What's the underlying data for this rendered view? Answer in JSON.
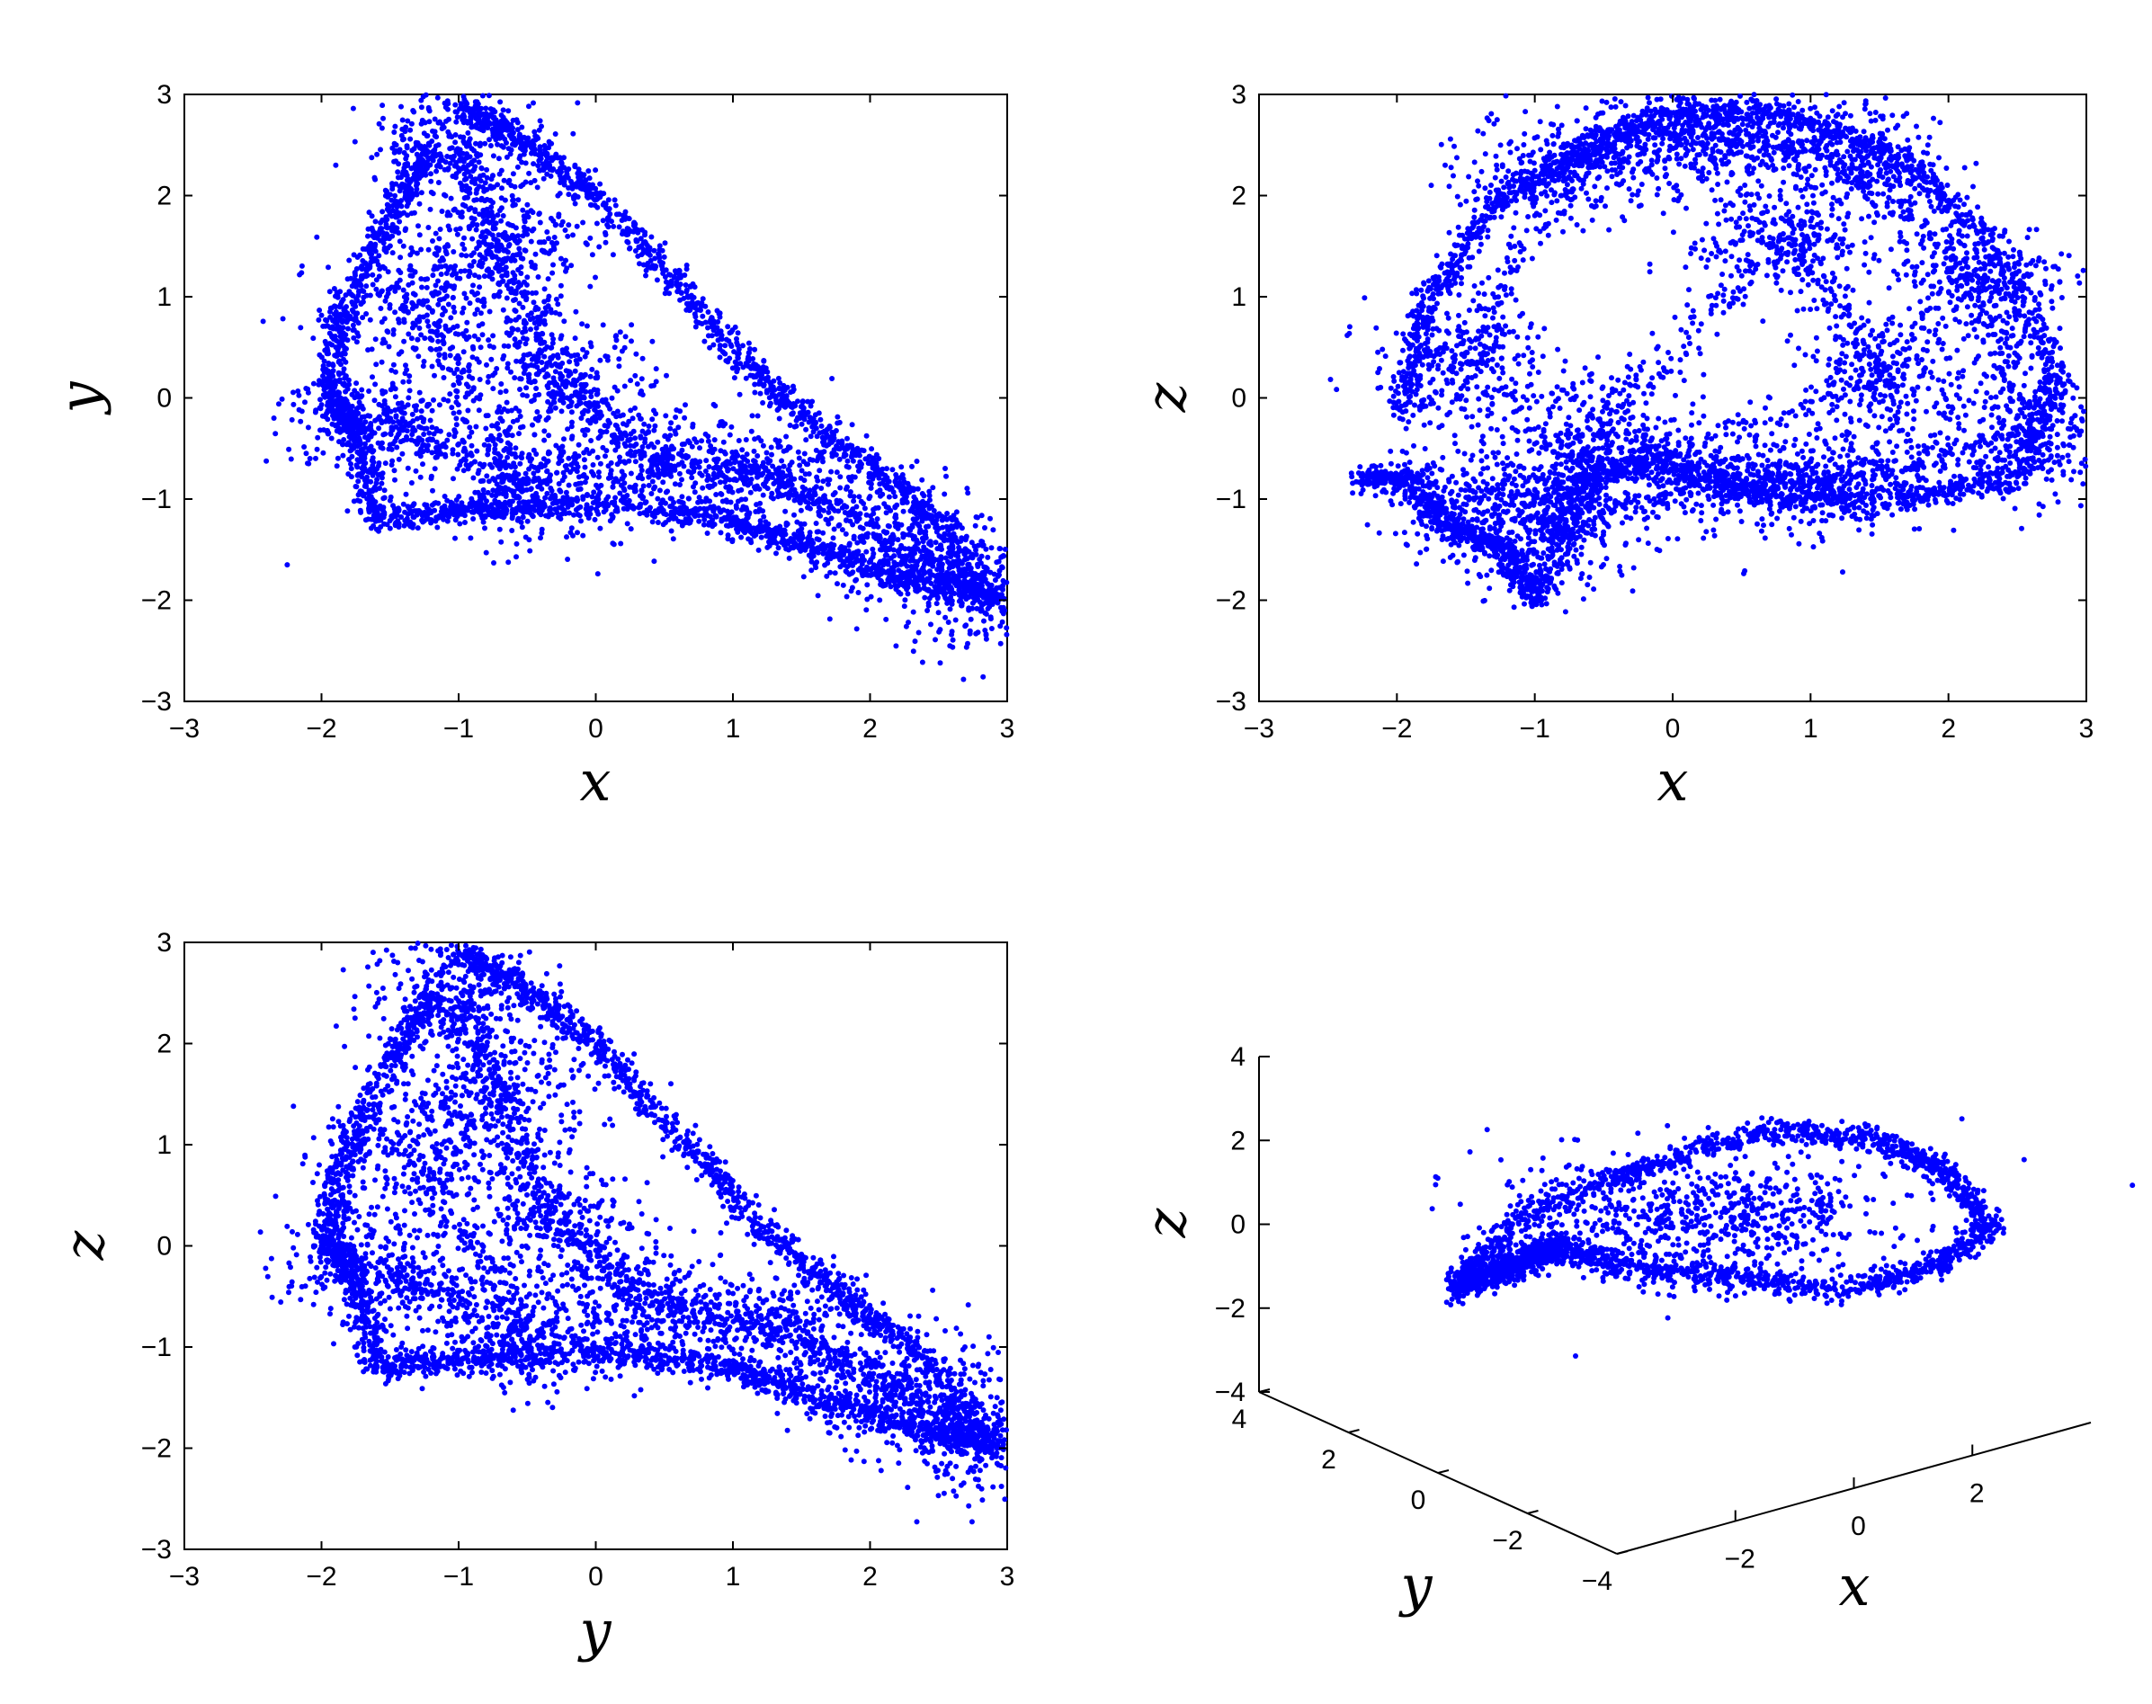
{
  "figure": {
    "marker_color": "#0000ff",
    "axis_color": "#000000",
    "background": "#ffffff"
  },
  "chart_data": [
    {
      "type": "scatter",
      "id": "xy",
      "title": "",
      "xlabel": "x",
      "ylabel": "y",
      "xlim": [
        -3,
        3
      ],
      "ylim": [
        -3,
        3
      ],
      "xticks": [
        "−3",
        "−2",
        "−1",
        "0",
        "1",
        "2",
        "3"
      ],
      "yticks": [
        "−3",
        "−2",
        "−1",
        "0",
        "1",
        "2",
        "3"
      ],
      "grid": false,
      "outline_points": [
        [
          -1.0,
          2.9
        ],
        [
          -0.6,
          2.6
        ],
        [
          0.0,
          2.0
        ],
        [
          0.6,
          1.1
        ],
        [
          1.2,
          0.2
        ],
        [
          1.8,
          -0.5
        ],
        [
          2.4,
          -1.1
        ],
        [
          2.9,
          -2.0
        ],
        [
          2.3,
          -1.8
        ],
        [
          1.6,
          -1.5
        ],
        [
          1.0,
          -1.2
        ],
        [
          0.0,
          -1.05
        ],
        [
          -0.9,
          -1.1
        ],
        [
          -1.6,
          -1.2
        ],
        [
          -1.75,
          -0.3
        ],
        [
          -1.95,
          0.0
        ],
        [
          -1.85,
          0.8
        ],
        [
          -1.5,
          1.8
        ],
        [
          -1.2,
          2.5
        ],
        [
          -2.25,
          -1.65
        ]
      ],
      "density_centers": [
        [
          -1.0,
          2.5
        ],
        [
          -0.7,
          1.5
        ],
        [
          -0.3,
          0.2
        ],
        [
          0.4,
          -0.6
        ],
        [
          1.3,
          -0.8
        ],
        [
          2.2,
          -1.4
        ],
        [
          2.8,
          -1.9
        ],
        [
          -1.6,
          -0.2
        ],
        [
          -0.5,
          -0.9
        ],
        [
          -1.3,
          0.9
        ]
      ]
    },
    {
      "type": "scatter",
      "id": "xz",
      "title": "",
      "xlabel": "x",
      "ylabel": "z",
      "xlim": [
        -3,
        3
      ],
      "ylim": [
        -3,
        3
      ],
      "xticks": [
        "−3",
        "−2",
        "−1",
        "0",
        "1",
        "2",
        "3"
      ],
      "yticks": [
        "−3",
        "−2",
        "−1",
        "0",
        "1",
        "2",
        "3"
      ],
      "grid": false,
      "outline_points": [
        [
          -1.95,
          -0.2
        ],
        [
          -1.8,
          0.9
        ],
        [
          -1.3,
          1.9
        ],
        [
          -0.6,
          2.5
        ],
        [
          0.0,
          2.8
        ],
        [
          0.8,
          2.8
        ],
        [
          1.6,
          2.4
        ],
        [
          2.3,
          1.6
        ],
        [
          2.8,
          0.2
        ],
        [
          2.5,
          -0.8
        ],
        [
          1.6,
          -1.0
        ],
        [
          0.6,
          -0.95
        ],
        [
          -0.1,
          -0.6
        ],
        [
          -0.6,
          -0.8
        ],
        [
          -1.0,
          -2.0
        ],
        [
          -1.2,
          -1.5
        ],
        [
          -1.6,
          -1.3
        ],
        [
          -1.9,
          -0.8
        ],
        [
          -2.25,
          -0.8
        ],
        [
          -1.65,
          2.3
        ]
      ],
      "density_centers": [
        [
          -1.5,
          0.3
        ],
        [
          -0.8,
          2.3
        ],
        [
          0.2,
          2.6
        ],
        [
          1.2,
          2.4
        ],
        [
          2.2,
          1.2
        ],
        [
          2.6,
          -0.4
        ],
        [
          1.2,
          -0.8
        ],
        [
          0.3,
          -0.8
        ],
        [
          -0.9,
          -1.3
        ],
        [
          -0.6,
          -0.4
        ],
        [
          0.8,
          1.6
        ],
        [
          1.6,
          0.2
        ],
        [
          -1.4,
          -1.0
        ]
      ]
    },
    {
      "type": "scatter",
      "id": "yz",
      "title": "",
      "xlabel": "y",
      "ylabel": "z",
      "xlim": [
        -3,
        3
      ],
      "ylim": [
        -3,
        3
      ],
      "xticks": [
        "−3",
        "−2",
        "−1",
        "0",
        "1",
        "2",
        "3"
      ],
      "yticks": [
        "−3",
        "−2",
        "−1",
        "0",
        "1",
        "2",
        "3"
      ],
      "grid": false,
      "outline_points": [
        [
          -1.0,
          2.9
        ],
        [
          -0.6,
          2.6
        ],
        [
          0.0,
          2.0
        ],
        [
          0.6,
          1.1
        ],
        [
          1.2,
          0.2
        ],
        [
          1.8,
          -0.5
        ],
        [
          2.4,
          -1.1
        ],
        [
          2.9,
          -2.0
        ],
        [
          2.3,
          -1.8
        ],
        [
          1.6,
          -1.5
        ],
        [
          1.0,
          -1.2
        ],
        [
          0.0,
          -1.05
        ],
        [
          -0.9,
          -1.1
        ],
        [
          -1.6,
          -1.2
        ],
        [
          -1.75,
          -0.3
        ],
        [
          -1.95,
          0.0
        ],
        [
          -1.85,
          0.8
        ],
        [
          -1.5,
          1.8
        ],
        [
          -1.2,
          2.5
        ]
      ],
      "density_centers": [
        [
          -1.0,
          2.5
        ],
        [
          -0.7,
          1.5
        ],
        [
          -0.3,
          0.2
        ],
        [
          0.4,
          -0.6
        ],
        [
          1.3,
          -0.8
        ],
        [
          2.2,
          -1.4
        ],
        [
          2.8,
          -1.9
        ],
        [
          -1.6,
          -0.2
        ],
        [
          -0.5,
          -0.9
        ],
        [
          -1.3,
          0.9
        ]
      ]
    },
    {
      "type": "scatter3d",
      "id": "xyz",
      "title": "",
      "xlabel": "x",
      "ylabel": "y",
      "zlabel": "z",
      "xlim": [
        -4,
        4
      ],
      "ylim": [
        -4,
        4
      ],
      "zlim": [
        -4,
        4
      ],
      "xticks": [
        "−2",
        "0",
        "2"
      ],
      "yticks": [
        "4",
        "2",
        "0",
        "−2",
        "−4"
      ],
      "zticks": [
        "4",
        "2",
        "0",
        "−2",
        "−4"
      ],
      "grid": false
    }
  ]
}
